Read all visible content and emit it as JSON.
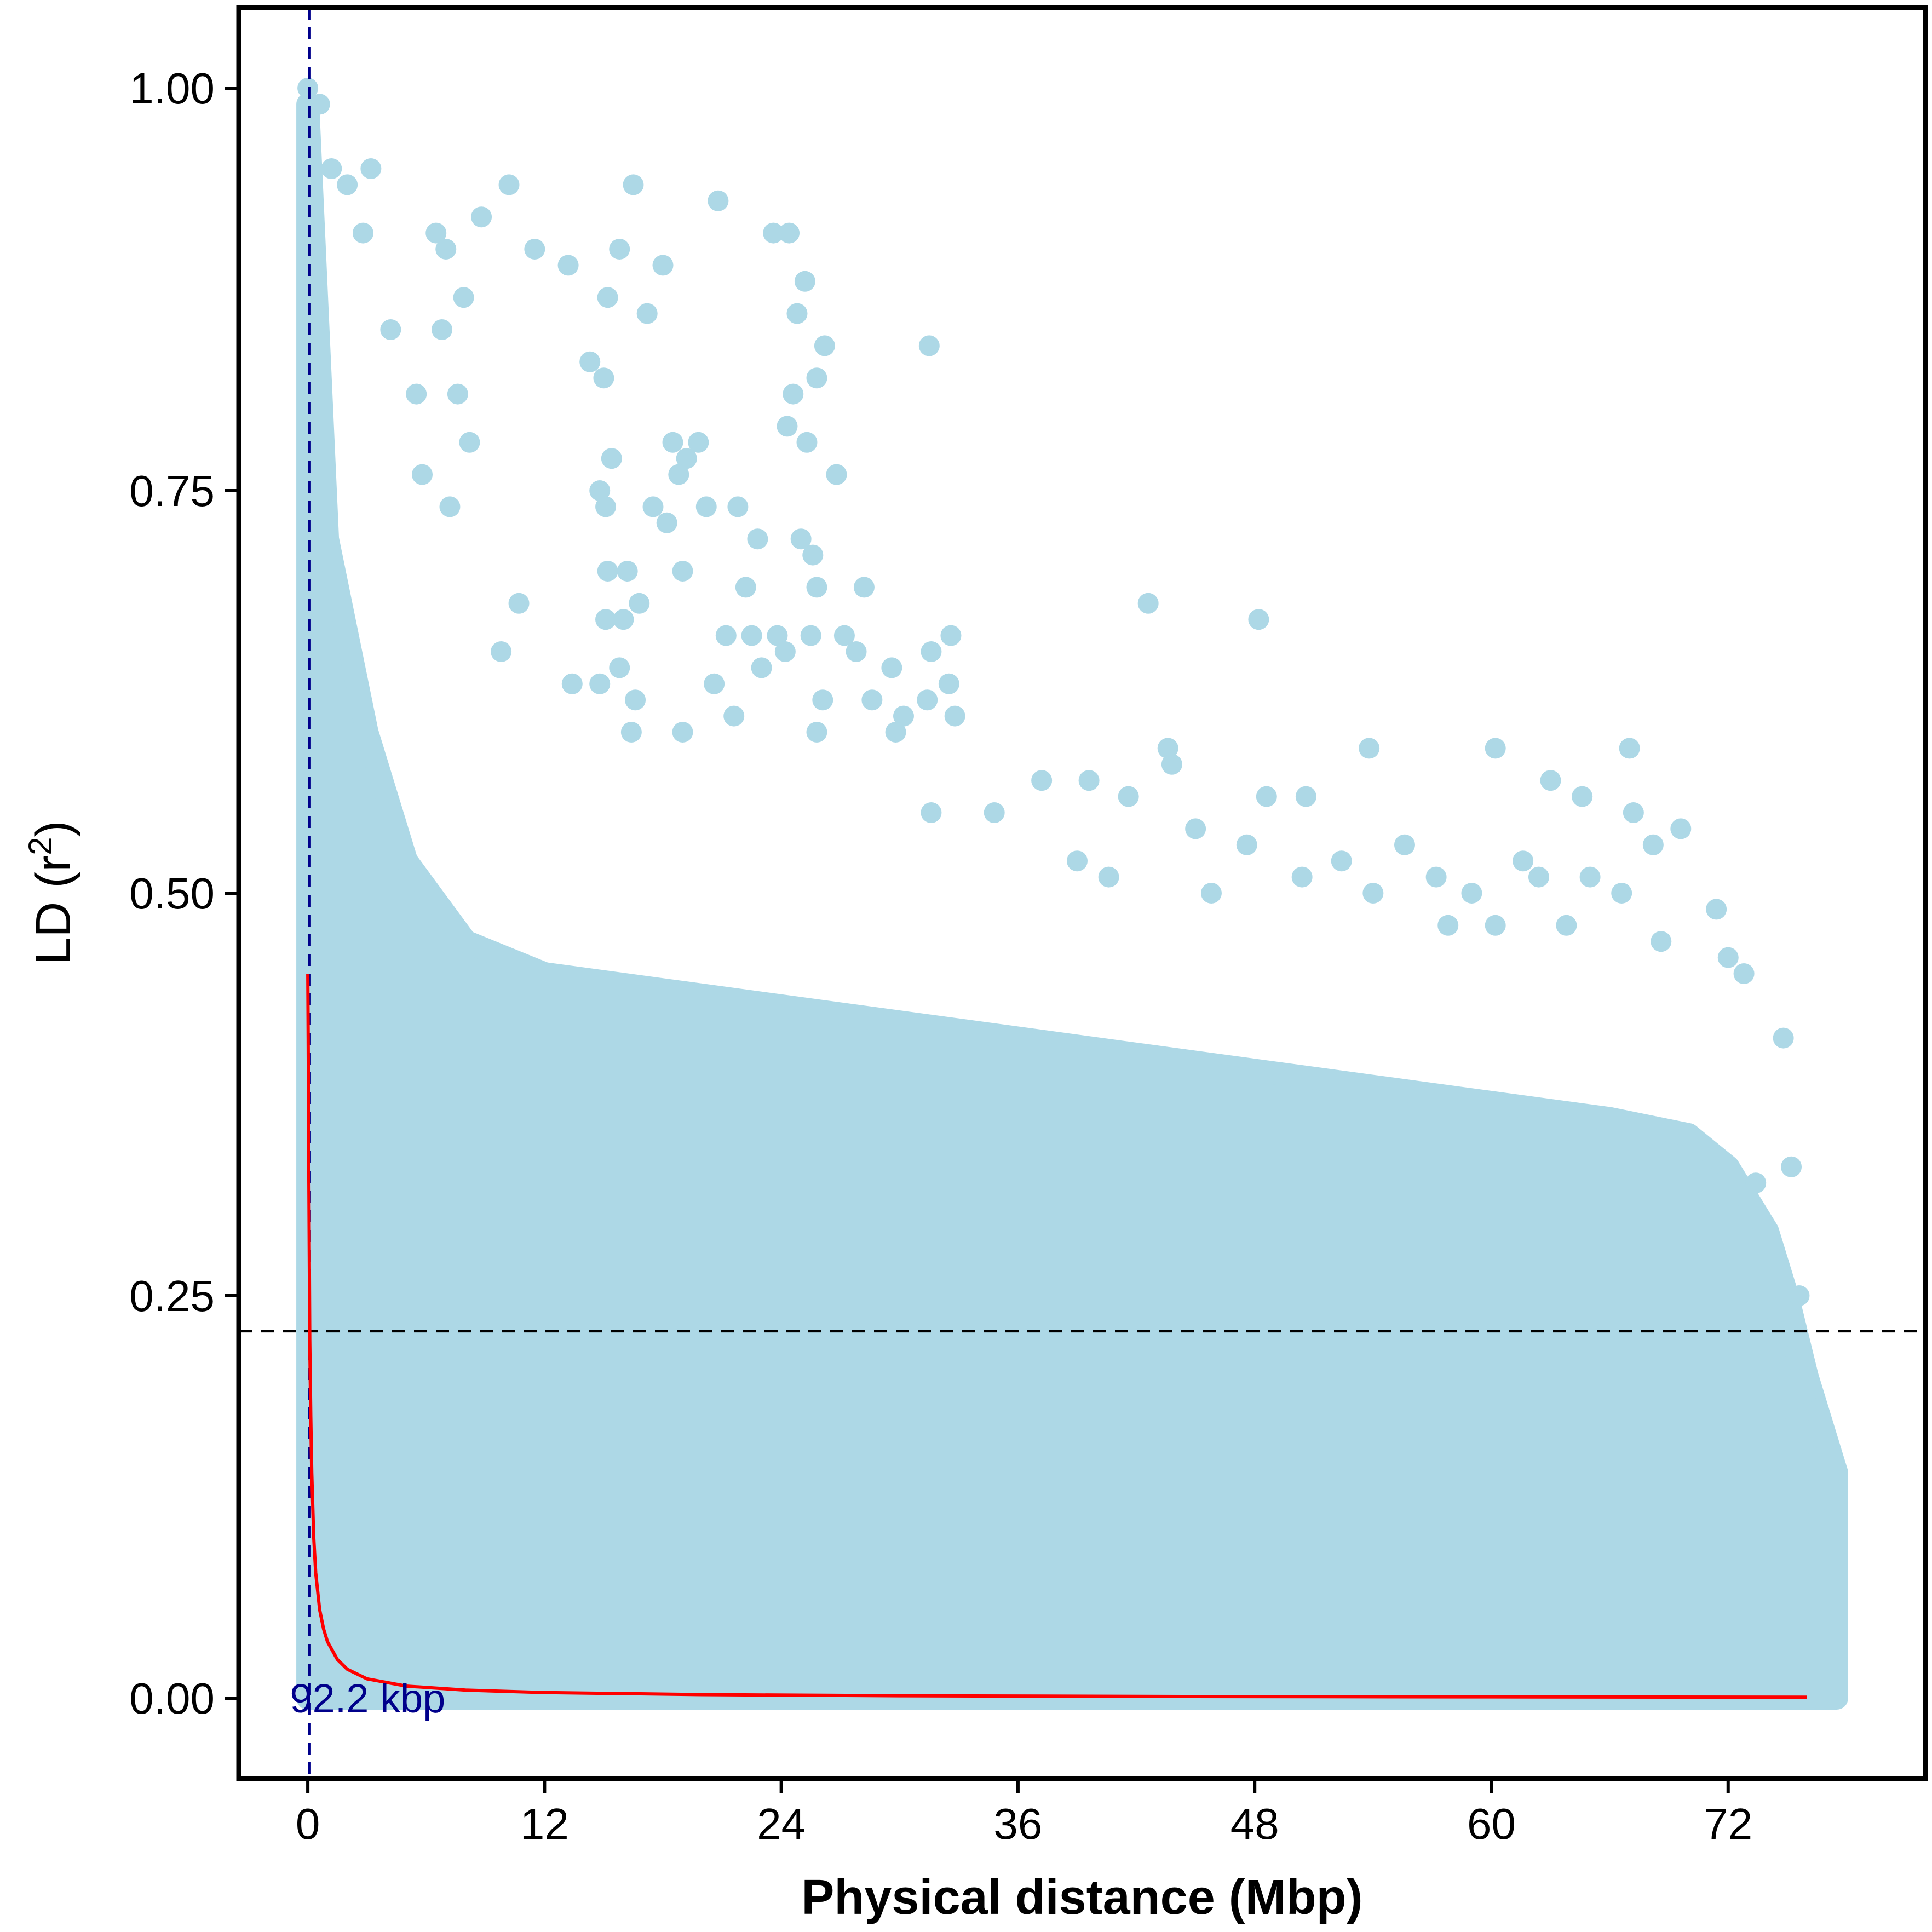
{
  "chart_data": {
    "type": "scatter",
    "xlabel": "Physical distance (Mbp)",
    "ylabel_main": "LD (r",
    "ylabel_sup": "2",
    "ylabel_close": ")",
    "xlim": [
      -3.5,
      82
    ],
    "ylim": [
      -0.05,
      1.05
    ],
    "x_ticks": [
      0,
      12,
      24,
      36,
      48,
      60,
      72
    ],
    "x_tick_labels": [
      "0",
      "12",
      "24",
      "36",
      "48",
      "60",
      "72"
    ],
    "y_ticks": [
      0,
      0.25,
      0.5,
      0.75,
      1.0
    ],
    "y_tick_labels": [
      "0.00",
      "0.25",
      "0.50",
      "0.75",
      "1.00"
    ],
    "grid": false,
    "colors": {
      "points": "#add8e6",
      "curve": "#ff0000",
      "vline": "#00008b",
      "hline": "#000000",
      "annotation": "#00008b"
    },
    "threshold_r2": 0.228,
    "decay_distance_label": "92.2 kbp",
    "decay_distance_mbp": 0.0922,
    "cloud_envelope": {
      "x": [
        0,
        1,
        3,
        5,
        8,
        12,
        18,
        24,
        30,
        36,
        42,
        48,
        54,
        60,
        66,
        70,
        72,
        74,
        75,
        76,
        77.5
      ],
      "upper_r2": [
        0.99,
        0.72,
        0.6,
        0.52,
        0.47,
        0.45,
        0.44,
        0.43,
        0.42,
        0.41,
        0.4,
        0.39,
        0.38,
        0.37,
        0.36,
        0.35,
        0.33,
        0.29,
        0.25,
        0.2,
        0.14
      ]
    },
    "outliers": [
      {
        "x": 0.0,
        "y": 1.0
      },
      {
        "x": 0.6,
        "y": 0.99
      },
      {
        "x": 1.2,
        "y": 0.95
      },
      {
        "x": 2.0,
        "y": 0.94
      },
      {
        "x": 3.2,
        "y": 0.95
      },
      {
        "x": 2.8,
        "y": 0.91
      },
      {
        "x": 6.5,
        "y": 0.91
      },
      {
        "x": 7.0,
        "y": 0.9
      },
      {
        "x": 8.8,
        "y": 0.92
      },
      {
        "x": 10.2,
        "y": 0.94
      },
      {
        "x": 11.5,
        "y": 0.9
      },
      {
        "x": 13.2,
        "y": 0.89
      },
      {
        "x": 15.8,
        "y": 0.9
      },
      {
        "x": 16.5,
        "y": 0.94
      },
      {
        "x": 18.0,
        "y": 0.89
      },
      {
        "x": 20.8,
        "y": 0.93
      },
      {
        "x": 23.6,
        "y": 0.91
      },
      {
        "x": 24.4,
        "y": 0.91
      },
      {
        "x": 25.2,
        "y": 0.88
      },
      {
        "x": 24.8,
        "y": 0.86
      },
      {
        "x": 15.2,
        "y": 0.87
      },
      {
        "x": 17.2,
        "y": 0.86
      },
      {
        "x": 14.3,
        "y": 0.83
      },
      {
        "x": 15.0,
        "y": 0.82
      },
      {
        "x": 26.2,
        "y": 0.84
      },
      {
        "x": 31.5,
        "y": 0.84
      },
      {
        "x": 25.8,
        "y": 0.82
      },
      {
        "x": 24.6,
        "y": 0.81
      },
      {
        "x": 24.3,
        "y": 0.79
      },
      {
        "x": 25.3,
        "y": 0.78
      },
      {
        "x": 5.5,
        "y": 0.81
      },
      {
        "x": 7.6,
        "y": 0.81
      },
      {
        "x": 7.9,
        "y": 0.87
      },
      {
        "x": 6.8,
        "y": 0.85
      },
      {
        "x": 4.2,
        "y": 0.85
      },
      {
        "x": 8.2,
        "y": 0.78
      },
      {
        "x": 18.5,
        "y": 0.78
      },
      {
        "x": 19.8,
        "y": 0.78
      },
      {
        "x": 19.2,
        "y": 0.77
      },
      {
        "x": 15.4,
        "y": 0.77
      },
      {
        "x": 18.8,
        "y": 0.76
      },
      {
        "x": 26.8,
        "y": 0.76
      },
      {
        "x": 5.8,
        "y": 0.76
      },
      {
        "x": 14.8,
        "y": 0.75
      },
      {
        "x": 7.2,
        "y": 0.74
      },
      {
        "x": 15.1,
        "y": 0.74
      },
      {
        "x": 17.5,
        "y": 0.74
      },
      {
        "x": 20.2,
        "y": 0.74
      },
      {
        "x": 21.8,
        "y": 0.74
      },
      {
        "x": 18.2,
        "y": 0.73
      },
      {
        "x": 22.8,
        "y": 0.72
      },
      {
        "x": 25.0,
        "y": 0.72
      },
      {
        "x": 25.6,
        "y": 0.71
      },
      {
        "x": 19.0,
        "y": 0.7
      },
      {
        "x": 15.2,
        "y": 0.7
      },
      {
        "x": 16.2,
        "y": 0.7
      },
      {
        "x": 25.8,
        "y": 0.69
      },
      {
        "x": 28.2,
        "y": 0.69
      },
      {
        "x": 22.2,
        "y": 0.69
      },
      {
        "x": 10.7,
        "y": 0.68
      },
      {
        "x": 16.8,
        "y": 0.68
      },
      {
        "x": 42.6,
        "y": 0.68
      },
      {
        "x": 48.2,
        "y": 0.67
      },
      {
        "x": 15.1,
        "y": 0.67
      },
      {
        "x": 16.0,
        "y": 0.67
      },
      {
        "x": 21.2,
        "y": 0.66
      },
      {
        "x": 22.5,
        "y": 0.66
      },
      {
        "x": 23.8,
        "y": 0.66
      },
      {
        "x": 25.5,
        "y": 0.66
      },
      {
        "x": 27.2,
        "y": 0.66
      },
      {
        "x": 31.6,
        "y": 0.65
      },
      {
        "x": 32.6,
        "y": 0.66
      },
      {
        "x": 9.8,
        "y": 0.65
      },
      {
        "x": 24.2,
        "y": 0.65
      },
      {
        "x": 27.8,
        "y": 0.65
      },
      {
        "x": 23.0,
        "y": 0.64
      },
      {
        "x": 29.6,
        "y": 0.64
      },
      {
        "x": 15.8,
        "y": 0.64
      },
      {
        "x": 20.6,
        "y": 0.63
      },
      {
        "x": 13.4,
        "y": 0.63
      },
      {
        "x": 14.8,
        "y": 0.63
      },
      {
        "x": 32.5,
        "y": 0.63
      },
      {
        "x": 26.1,
        "y": 0.62
      },
      {
        "x": 28.6,
        "y": 0.62
      },
      {
        "x": 31.4,
        "y": 0.62
      },
      {
        "x": 16.6,
        "y": 0.62
      },
      {
        "x": 21.6,
        "y": 0.61
      },
      {
        "x": 30.2,
        "y": 0.61
      },
      {
        "x": 32.8,
        "y": 0.61
      },
      {
        "x": 25.8,
        "y": 0.6
      },
      {
        "x": 29.8,
        "y": 0.6
      },
      {
        "x": 16.4,
        "y": 0.6
      },
      {
        "x": 19.0,
        "y": 0.6
      },
      {
        "x": 53.8,
        "y": 0.59
      },
      {
        "x": 60.2,
        "y": 0.59
      },
      {
        "x": 67.0,
        "y": 0.59
      },
      {
        "x": 43.6,
        "y": 0.59
      },
      {
        "x": 43.8,
        "y": 0.58
      },
      {
        "x": 37.2,
        "y": 0.57
      },
      {
        "x": 39.6,
        "y": 0.57
      },
      {
        "x": 63.0,
        "y": 0.57
      },
      {
        "x": 41.6,
        "y": 0.56
      },
      {
        "x": 48.6,
        "y": 0.56
      },
      {
        "x": 50.6,
        "y": 0.56
      },
      {
        "x": 64.6,
        "y": 0.56
      },
      {
        "x": 34.8,
        "y": 0.55
      },
      {
        "x": 31.6,
        "y": 0.55
      },
      {
        "x": 67.2,
        "y": 0.55
      },
      {
        "x": 69.6,
        "y": 0.54
      },
      {
        "x": 45.0,
        "y": 0.54
      },
      {
        "x": 47.6,
        "y": 0.53
      },
      {
        "x": 55.6,
        "y": 0.53
      },
      {
        "x": 68.2,
        "y": 0.53
      },
      {
        "x": 52.4,
        "y": 0.52
      },
      {
        "x": 61.6,
        "y": 0.52
      },
      {
        "x": 39.0,
        "y": 0.52
      },
      {
        "x": 40.6,
        "y": 0.51
      },
      {
        "x": 57.2,
        "y": 0.51
      },
      {
        "x": 62.4,
        "y": 0.51
      },
      {
        "x": 65.0,
        "y": 0.51
      },
      {
        "x": 50.4,
        "y": 0.51
      },
      {
        "x": 59.0,
        "y": 0.5
      },
      {
        "x": 66.6,
        "y": 0.5
      },
      {
        "x": 71.4,
        "y": 0.49
      },
      {
        "x": 45.8,
        "y": 0.5
      },
      {
        "x": 54.0,
        "y": 0.5
      },
      {
        "x": 57.8,
        "y": 0.48
      },
      {
        "x": 60.2,
        "y": 0.48
      },
      {
        "x": 63.8,
        "y": 0.48
      },
      {
        "x": 68.6,
        "y": 0.47
      },
      {
        "x": 72.0,
        "y": 0.46
      },
      {
        "x": 72.8,
        "y": 0.45
      },
      {
        "x": 74.8,
        "y": 0.41
      },
      {
        "x": 75.2,
        "y": 0.33
      },
      {
        "x": 73.4,
        "y": 0.32
      },
      {
        "x": 74.0,
        "y": 0.29
      },
      {
        "x": 75.6,
        "y": 0.25
      },
      {
        "x": 74.6,
        "y": 0.24
      },
      {
        "x": 74.2,
        "y": 0.23
      },
      {
        "x": 75.4,
        "y": 0.21
      },
      {
        "x": 76.0,
        "y": 0.19
      },
      {
        "x": 75.0,
        "y": 0.18
      },
      {
        "x": 76.2,
        "y": 0.15
      },
      {
        "x": 76.4,
        "y": 0.12
      }
    ],
    "decay_curve": {
      "x": [
        0.0,
        0.02,
        0.05,
        0.1,
        0.15,
        0.2,
        0.3,
        0.4,
        0.6,
        0.8,
        1.0,
        1.5,
        2,
        3,
        5,
        8,
        12,
        20,
        30,
        45,
        60,
        76
      ],
      "y": [
        0.45,
        0.41,
        0.33,
        0.222,
        0.175,
        0.14,
        0.1,
        0.078,
        0.055,
        0.043,
        0.035,
        0.024,
        0.018,
        0.012,
        0.0075,
        0.005,
        0.0035,
        0.0022,
        0.0015,
        0.001,
        0.0008,
        0.0006
      ]
    }
  }
}
